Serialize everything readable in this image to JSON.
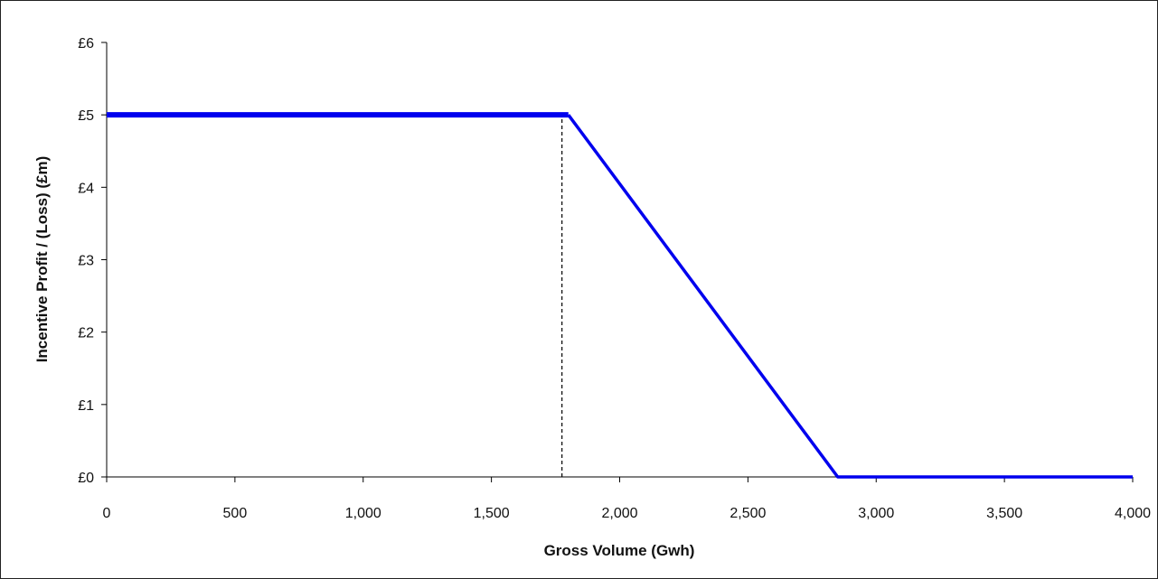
{
  "chart_data": {
    "type": "line",
    "title": "",
    "xlabel": "Gross Volume (Gwh)",
    "ylabel": "Incentive Profit / (Loss) (£m)",
    "xlim": [
      0,
      4000
    ],
    "ylim": [
      0,
      6
    ],
    "x_ticks": [
      0,
      500,
      1000,
      1500,
      2000,
      2500,
      3000,
      3500,
      4000
    ],
    "x_tick_labels": [
      "0",
      "500",
      "1,000",
      "1,500",
      "2,000",
      "2,500",
      "3,000",
      "3,500",
      "4,000"
    ],
    "y_ticks": [
      0,
      1,
      2,
      3,
      4,
      5,
      6
    ],
    "y_tick_labels": [
      "£0",
      "£1",
      "£2",
      "£3",
      "£4",
      "£5",
      "£6"
    ],
    "grid": false,
    "legend": "none",
    "series": [
      {
        "color": "#0000ee",
        "points": [
          [
            0,
            5
          ],
          [
            1800,
            5
          ],
          [
            2850,
            0
          ],
          [
            4000,
            0
          ]
        ]
      }
    ],
    "reference_lines": [
      {
        "style": "dashed",
        "color": "#000000",
        "points": [
          [
            1775,
            0
          ],
          [
            1775,
            5
          ]
        ]
      }
    ]
  }
}
